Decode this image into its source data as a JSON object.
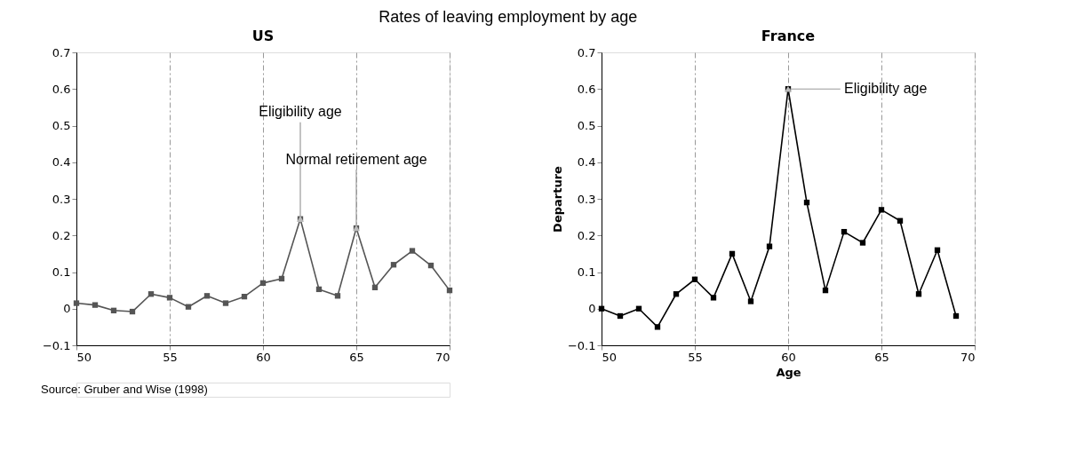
{
  "chart_data": [
    {
      "type": "line",
      "title": "Rates of leaving employment by age",
      "subtitle": "US",
      "x": [
        50,
        51,
        52,
        53,
        54,
        55,
        56,
        57,
        58,
        59,
        60,
        61,
        62,
        63,
        64,
        65,
        66,
        67,
        68,
        69,
        70
      ],
      "series": [
        {
          "color": "#555555",
          "values": [
            0.015,
            0.01,
            -0.005,
            -0.008,
            0.04,
            0.03,
            0.005,
            0.035,
            0.015,
            0.033,
            0.07,
            0.082,
            0.245,
            0.053,
            0.035,
            0.22,
            0.058,
            0.12,
            0.158,
            0.118,
            0.05
          ]
        }
      ],
      "xlim": [
        50,
        70
      ],
      "xticks": [
        50,
        55,
        60,
        65,
        70
      ],
      "ylim": [
        -0.1,
        0.7
      ],
      "yticks": [
        -0.1,
        0,
        0.1,
        0.2,
        0.3,
        0.4,
        0.5,
        0.6,
        0.7
      ],
      "grid": "x",
      "marker": "square",
      "line_style": "solid",
      "annotations": [
        {
          "text": "Eligibility age",
          "x": 62,
          "y": 0.245
        },
        {
          "text": "Normal retirement age",
          "x": 65,
          "y": 0.22
        },
        "Source: Gruber and Wise (1998)"
      ]
    },
    {
      "type": "line",
      "title": "France",
      "xlabel": "Age",
      "ylabel": "Departure",
      "x": [
        50,
        51,
        52,
        53,
        54,
        55,
        56,
        57,
        58,
        59,
        60,
        61,
        62,
        63,
        64,
        65,
        66,
        67,
        68,
        69
      ],
      "series": [
        {
          "color": "#000000",
          "values": [
            0,
            -0.02,
            0,
            -0.05,
            0.04,
            0.08,
            0.03,
            0.15,
            0.02,
            0.17,
            0.6,
            0.29,
            0.05,
            0.21,
            0.18,
            0.27,
            0.24,
            0.04,
            0.16,
            -0.02
          ]
        }
      ],
      "xlim": [
        50,
        70
      ],
      "xticks": [
        50,
        55,
        60,
        65,
        70
      ],
      "ylim": [
        -0.1,
        0.7
      ],
      "yticks": [
        -0.1,
        0,
        0.1,
        0.2,
        0.3,
        0.4,
        0.5,
        0.6,
        0.7
      ],
      "grid": "x",
      "marker": "square",
      "line_style": "solid",
      "annotations": [
        {
          "text": "Eligibility age",
          "x": 60,
          "y": 0.6
        }
      ]
    }
  ]
}
